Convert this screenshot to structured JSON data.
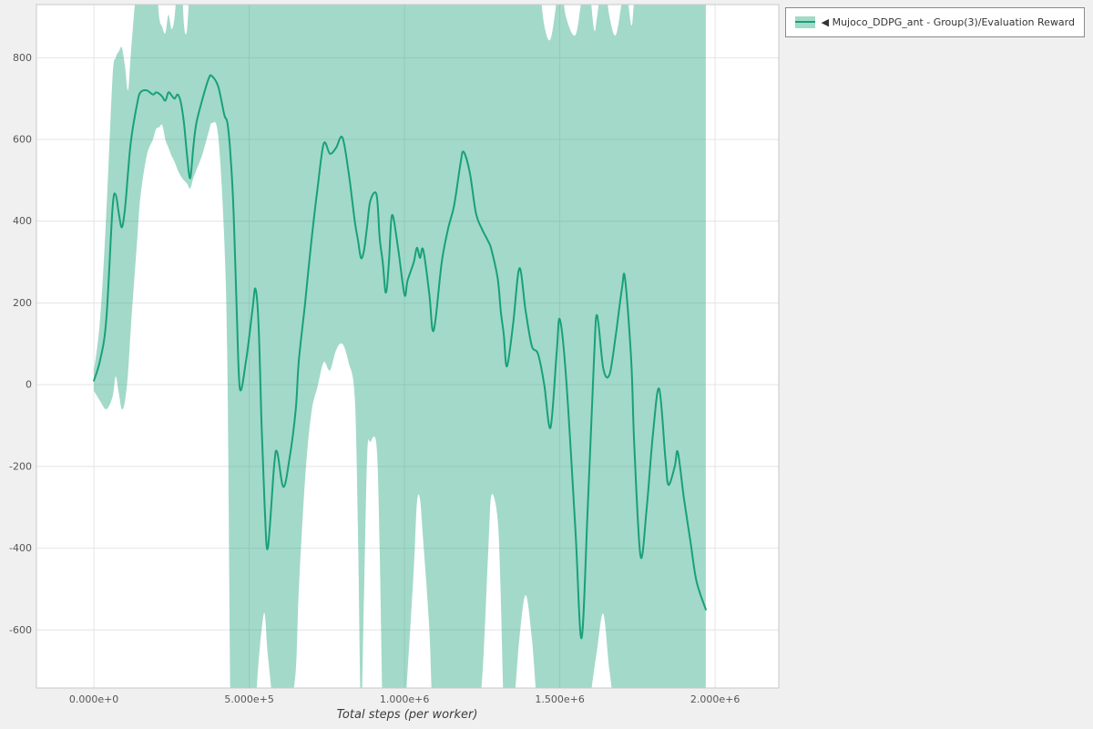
{
  "colors": {
    "line": "#18a179",
    "band": "rgba(24,161,121,0.40)",
    "grid": "#e4e4e4",
    "plot_border": "#c8c8c8",
    "plot_background": "#ffffff",
    "page_background": "#f0f0f0",
    "tick_text": "#555555"
  },
  "legend": {
    "items": [
      {
        "label": "◀ Mujoco_DDPG_ant - Group(3)/Evaluation Reward"
      }
    ]
  },
  "chart_data": {
    "type": "line",
    "title": "",
    "xlabel": "Total steps (per worker)",
    "ylabel": "",
    "grid": true,
    "legend_position": "top-right-outside",
    "xlim": [
      -185000,
      2205000
    ],
    "ylim": [
      -742,
      930
    ],
    "x_ticks": [
      {
        "value": 0,
        "label": "0.000e+0"
      },
      {
        "value": 500000,
        "label": "5.000e+5"
      },
      {
        "value": 1000000,
        "label": "1.000e+6"
      },
      {
        "value": 1500000,
        "label": "1.500e+6"
      },
      {
        "value": 2000000,
        "label": "2.000e+6"
      }
    ],
    "y_ticks": [
      {
        "value": -600,
        "label": "-600"
      },
      {
        "value": -400,
        "label": "-400"
      },
      {
        "value": -200,
        "label": "-200"
      },
      {
        "value": 0,
        "label": "0"
      },
      {
        "value": 200,
        "label": "200"
      },
      {
        "value": 400,
        "label": "400"
      },
      {
        "value": 600,
        "label": "600"
      },
      {
        "value": 800,
        "label": "800"
      }
    ],
    "series": [
      {
        "name": "Mujoco_DDPG_ant - Group(3)/Evaluation Reward",
        "x": [
          0,
          20000,
          40000,
          60000,
          70000,
          80000,
          90000,
          100000,
          110000,
          120000,
          140000,
          150000,
          170000,
          190000,
          200000,
          210000,
          220000,
          230000,
          240000,
          250000,
          260000,
          270000,
          280000,
          290000,
          300000,
          310000,
          320000,
          330000,
          350000,
          370000,
          380000,
          400000,
          420000,
          430000,
          440000,
          450000,
          460000,
          470000,
          490000,
          510000,
          520000,
          530000,
          540000,
          550000,
          560000,
          580000,
          590000,
          610000,
          630000,
          650000,
          660000,
          680000,
          700000,
          720000,
          740000,
          760000,
          780000,
          800000,
          820000,
          840000,
          850000,
          860000,
          870000,
          880000,
          890000,
          910000,
          920000,
          930000,
          940000,
          950000,
          960000,
          980000,
          1000000,
          1010000,
          1030000,
          1040000,
          1050000,
          1060000,
          1080000,
          1090000,
          1100000,
          1120000,
          1140000,
          1160000,
          1180000,
          1190000,
          1210000,
          1230000,
          1250000,
          1270000,
          1280000,
          1300000,
          1310000,
          1320000,
          1330000,
          1350000,
          1370000,
          1390000,
          1410000,
          1430000,
          1450000,
          1470000,
          1490000,
          1500000,
          1520000,
          1550000,
          1570000,
          1590000,
          1610000,
          1620000,
          1640000,
          1660000,
          1680000,
          1700000,
          1710000,
          1730000,
          1740000,
          1760000,
          1780000,
          1800000,
          1820000,
          1840000,
          1850000,
          1870000,
          1880000,
          1900000,
          1920000,
          1940000,
          1970000
        ],
        "mean": [
          10,
          60,
          160,
          430,
          465,
          420,
          385,
          430,
          520,
          600,
          690,
          715,
          720,
          710,
          715,
          712,
          705,
          695,
          715,
          708,
          700,
          710,
          690,
          640,
          560,
          505,
          580,
          640,
          700,
          750,
          755,
          730,
          660,
          640,
          560,
          420,
          180,
          -10,
          60,
          180,
          235,
          150,
          -100,
          -300,
          -400,
          -200,
          -165,
          -250,
          -180,
          -60,
          60,
          200,
          350,
          480,
          590,
          565,
          580,
          605,
          520,
          400,
          355,
          310,
          330,
          390,
          450,
          465,
          360,
          300,
          225,
          300,
          415,
          330,
          220,
          255,
          300,
          335,
          310,
          330,
          220,
          135,
          160,
          300,
          380,
          440,
          540,
          570,
          520,
          420,
          380,
          350,
          330,
          260,
          180,
          120,
          45,
          150,
          285,
          180,
          95,
          75,
          0,
          -105,
          80,
          160,
          20,
          -350,
          -620,
          -300,
          60,
          170,
          40,
          25,
          120,
          235,
          260,
          60,
          -150,
          -420,
          -300,
          -120,
          -10,
          -180,
          -245,
          -200,
          -165,
          -280,
          -380,
          -480,
          -550
        ],
        "lower": [
          -15,
          -40,
          -60,
          -30,
          20,
          -20,
          -60,
          -40,
          30,
          150,
          360,
          460,
          560,
          600,
          625,
          630,
          635,
          600,
          580,
          560,
          545,
          525,
          510,
          500,
          492,
          480,
          505,
          525,
          565,
          620,
          640,
          610,
          350,
          30,
          -800,
          -800,
          -800,
          -800,
          -800,
          -800,
          -780,
          -680,
          -600,
          -560,
          -660,
          -800,
          -800,
          -800,
          -790,
          -700,
          -500,
          -230,
          -70,
          -5,
          55,
          35,
          85,
          100,
          55,
          -30,
          -350,
          -800,
          -500,
          -170,
          -140,
          -150,
          -400,
          -800,
          -800,
          -800,
          -800,
          -800,
          -800,
          -700,
          -450,
          -290,
          -280,
          -380,
          -600,
          -800,
          -800,
          -800,
          -800,
          -800,
          -800,
          -800,
          -800,
          -800,
          -720,
          -400,
          -270,
          -330,
          -520,
          -800,
          -800,
          -800,
          -620,
          -515,
          -620,
          -800,
          -800,
          -800,
          -800,
          -800,
          -800,
          -800,
          -800,
          -800,
          -700,
          -650,
          -560,
          -700,
          -800,
          -800,
          -800,
          -800,
          -800,
          -800,
          -800,
          -800,
          -800,
          -800,
          -800,
          -800,
          -800,
          -800,
          -800,
          -800,
          -800
        ],
        "upper": [
          35,
          160,
          420,
          750,
          800,
          815,
          825,
          780,
          720,
          820,
          1000,
          1040,
          1040,
          1040,
          1000,
          900,
          875,
          860,
          905,
          870,
          900,
          1000,
          1040,
          880,
          870,
          1000,
          1040,
          1040,
          1040,
          1040,
          1040,
          1040,
          1040,
          1040,
          1040,
          1040,
          1040,
          1040,
          1040,
          1040,
          1040,
          1040,
          1040,
          1040,
          1040,
          1040,
          1040,
          1040,
          1040,
          1040,
          1040,
          1040,
          1040,
          1040,
          1040,
          1040,
          1040,
          1040,
          1040,
          1040,
          1040,
          1040,
          1040,
          1040,
          1040,
          1040,
          1040,
          1040,
          1040,
          1040,
          1040,
          1040,
          1040,
          1040,
          1040,
          1040,
          1040,
          1040,
          1040,
          1040,
          1040,
          1040,
          1040,
          1040,
          1040,
          1040,
          1040,
          1040,
          1040,
          1040,
          1040,
          1040,
          1040,
          1040,
          1040,
          1040,
          1040,
          1040,
          1040,
          1000,
          880,
          845,
          940,
          1000,
          900,
          855,
          940,
          1000,
          870,
          900,
          1000,
          900,
          855,
          940,
          1000,
          880,
          940,
          1040,
          1040,
          1040,
          1040,
          1040,
          1040,
          1040,
          1040,
          1040,
          1040,
          1040,
          1040
        ]
      }
    ]
  }
}
